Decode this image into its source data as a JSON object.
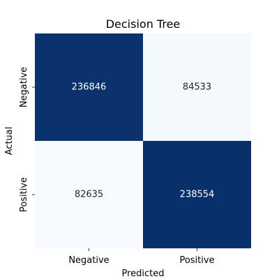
{
  "chart_data": {
    "type": "heatmap",
    "title": "Decision Tree",
    "xlabel": "Predicted",
    "ylabel": "Actual",
    "x_categories": [
      "Negative",
      "Positive"
    ],
    "y_categories": [
      "Negative",
      "Positive"
    ],
    "values": [
      [
        236846,
        84533
      ],
      [
        82635,
        238554
      ]
    ],
    "colormap": "Blues",
    "color_low": "#f7fbff",
    "color_high": "#08306b",
    "text_dark": "#262626",
    "text_light": "#ffffff",
    "colorbar": false,
    "grid": false
  }
}
